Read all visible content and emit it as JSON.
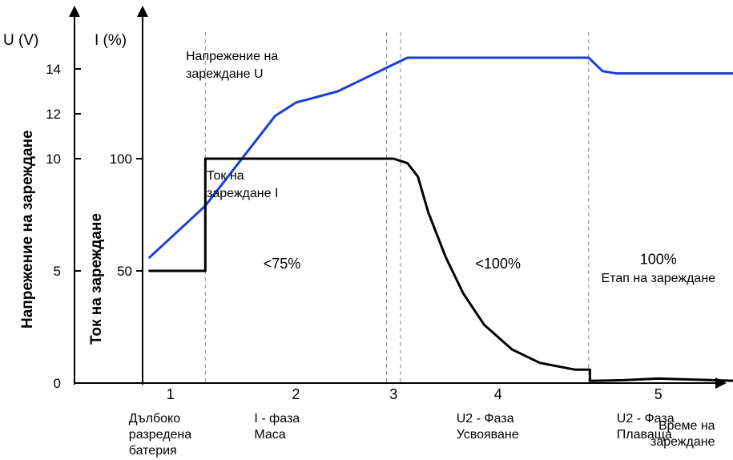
{
  "chart_data": {
    "type": "line",
    "axes": {
      "u_label": "U (V)",
      "i_label": "I (%)",
      "u_title": "Напрежение на зареждане",
      "i_title": "Ток на зареждане",
      "time_label_line1": "Време на",
      "time_label_line2": "зареждане",
      "u_ticks": [
        0,
        5,
        10,
        12,
        14
      ],
      "i_ticks": [
        50,
        100
      ],
      "u_range": [
        0,
        15
      ]
    },
    "series": [
      {
        "name": "Напрежение на зареждане U",
        "color": "#1a3fd6",
        "t": [
          0.1,
          0.9,
          1.9,
          2.2,
          2.8,
          3.2,
          3.8,
          4.0,
          6.4,
          6.5,
          6.6,
          6.8,
          7.0,
          8.5
        ],
        "values": [
          5.6,
          7.9,
          11.9,
          12.5,
          13.0,
          13.6,
          14.5,
          14.5,
          14.5,
          14.2,
          13.9,
          13.8,
          13.8,
          13.8
        ]
      },
      {
        "name": "Ток на зареждане I",
        "color": "#000000",
        "t": [
          0.1,
          0.9,
          0.9,
          3.6,
          3.8,
          3.95,
          4.1,
          4.35,
          4.6,
          4.9,
          5.3,
          5.7,
          6.2,
          6.42,
          6.42,
          6.9,
          7.4,
          8.5
        ],
        "values": [
          50,
          50,
          100,
          100,
          98,
          92,
          76,
          56,
          40,
          26,
          15,
          9,
          6,
          6,
          1,
          1.3,
          2,
          1
        ]
      }
    ],
    "phase_boundaries_t": [
      0.9,
      3.5,
      3.7,
      6.4
    ],
    "phases": [
      {
        "number": "1",
        "t": 0.4,
        "name_lines": [
          "Дълбоко",
          "разредена",
          "батерия"
        ]
      },
      {
        "number": "2",
        "t": 2.2,
        "name_lines": [
          "I - фаза",
          "Маса"
        ]
      },
      {
        "number": "3",
        "t": 3.6,
        "name_lines": []
      },
      {
        "number": "4",
        "t": 5.1,
        "name_lines": [
          "U2 - Фаза",
          "Усвояване"
        ]
      },
      {
        "number": "5",
        "t": 7.4,
        "name_lines": [
          "U2 - Фаза",
          "Плаваща"
        ]
      }
    ],
    "stage_labels": [
      {
        "text": "<75%",
        "t": 2.0,
        "u": 5.1
      },
      {
        "text": "<100%",
        "t": 5.1,
        "u": 5.1
      },
      {
        "text": "100%",
        "t": 7.4,
        "u": 5.3
      },
      {
        "text": "Етап на зареждане",
        "t": 7.4,
        "u": 4.5
      }
    ],
    "annotations": {
      "voltage_line1": "Напрежение на",
      "voltage_line2": "зареждане U",
      "current_line1": "Ток на",
      "current_line2": "зареждане I"
    }
  }
}
